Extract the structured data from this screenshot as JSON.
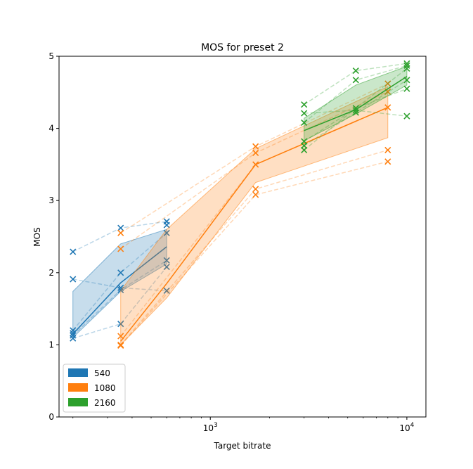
{
  "chart_data": {
    "type": "line",
    "title": "MOS for preset 2",
    "xlabel": "Target bitrate",
    "ylabel": "MOS",
    "xscale": "log",
    "xlim": [
      170,
      12500
    ],
    "ylim": [
      0,
      5
    ],
    "yticks": [
      0,
      1,
      2,
      3,
      4,
      5
    ],
    "xticks": [
      {
        "value": 1000,
        "base": "10",
        "exp": "3"
      },
      {
        "value": 10000,
        "base": "10",
        "exp": "4"
      }
    ],
    "legend": {
      "position": "lower-left",
      "entries": [
        "540",
        "1080",
        "2160"
      ]
    },
    "grid": false,
    "series": [
      {
        "name": "540",
        "color": "#1f77b4",
        "x": [
          200,
          350,
          600
        ],
        "mean": [
          1.15,
          1.86,
          2.36
        ],
        "band_low": [
          1.1,
          1.74,
          2.12
        ],
        "band_high": [
          1.74,
          2.4,
          2.6
        ],
        "points": [
          {
            "x": 200,
            "y": 2.29
          },
          {
            "x": 200,
            "y": 1.91
          },
          {
            "x": 200,
            "y": 1.2
          },
          {
            "x": 200,
            "y": 1.16
          },
          {
            "x": 200,
            "y": 1.13
          },
          {
            "x": 200,
            "y": 1.09
          },
          {
            "x": 350,
            "y": 2.62
          },
          {
            "x": 350,
            "y": 2.0
          },
          {
            "x": 350,
            "y": 1.79
          },
          {
            "x": 350,
            "y": 1.76
          },
          {
            "x": 350,
            "y": 1.29
          },
          {
            "x": 600,
            "y": 2.71
          },
          {
            "x": 600,
            "y": 2.66
          },
          {
            "x": 600,
            "y": 2.55
          },
          {
            "x": 600,
            "y": 2.17
          },
          {
            "x": 600,
            "y": 2.08
          },
          {
            "x": 600,
            "y": 1.75
          }
        ],
        "traces": [
          [
            {
              "x": 200,
              "y": 2.29
            },
            {
              "x": 350,
              "y": 2.62
            },
            {
              "x": 600,
              "y": 2.71
            }
          ],
          [
            {
              "x": 200,
              "y": 1.91
            },
            {
              "x": 350,
              "y": 1.79
            },
            {
              "x": 600,
              "y": 1.75
            }
          ],
          [
            {
              "x": 200,
              "y": 1.2
            },
            {
              "x": 350,
              "y": 2.0
            },
            {
              "x": 600,
              "y": 2.55
            }
          ],
          [
            {
              "x": 200,
              "y": 1.13
            },
            {
              "x": 350,
              "y": 1.76
            },
            {
              "x": 600,
              "y": 2.17
            }
          ],
          [
            {
              "x": 200,
              "y": 1.09
            },
            {
              "x": 350,
              "y": 1.29
            },
            {
              "x": 600,
              "y": 2.08
            }
          ]
        ]
      },
      {
        "name": "1080",
        "color": "#ff7f0e",
        "x": [
          350,
          600,
          1700,
          8000
        ],
        "mean": [
          1.05,
          1.85,
          3.5,
          4.29
        ],
        "band_low": [
          1.0,
          1.65,
          3.25,
          3.87
        ],
        "band_high": [
          1.75,
          2.6,
          3.72,
          4.58
        ],
        "points": [
          {
            "x": 350,
            "y": 2.55
          },
          {
            "x": 350,
            "y": 2.33
          },
          {
            "x": 350,
            "y": 1.12
          },
          {
            "x": 350,
            "y": 1.0
          },
          {
            "x": 350,
            "y": 0.99
          },
          {
            "x": 1700,
            "y": 3.75
          },
          {
            "x": 1700,
            "y": 3.66
          },
          {
            "x": 1700,
            "y": 3.5
          },
          {
            "x": 1700,
            "y": 3.16
          },
          {
            "x": 1700,
            "y": 3.08
          },
          {
            "x": 8000,
            "y": 4.62
          },
          {
            "x": 8000,
            "y": 4.51
          },
          {
            "x": 8000,
            "y": 4.29
          },
          {
            "x": 8000,
            "y": 3.7
          },
          {
            "x": 8000,
            "y": 3.54
          }
        ],
        "traces": [
          [
            {
              "x": 350,
              "y": 2.55
            },
            {
              "x": 1700,
              "y": 3.75
            },
            {
              "x": 8000,
              "y": 4.62
            }
          ],
          [
            {
              "x": 350,
              "y": 2.33
            },
            {
              "x": 1700,
              "y": 3.66
            },
            {
              "x": 8000,
              "y": 4.51
            }
          ],
          [
            {
              "x": 350,
              "y": 1.12
            },
            {
              "x": 1700,
              "y": 3.5
            },
            {
              "x": 8000,
              "y": 4.29
            }
          ],
          [
            {
              "x": 350,
              "y": 1.0
            },
            {
              "x": 1700,
              "y": 3.16
            },
            {
              "x": 8000,
              "y": 3.7
            }
          ],
          [
            {
              "x": 350,
              "y": 0.99
            },
            {
              "x": 1700,
              "y": 3.08
            },
            {
              "x": 8000,
              "y": 3.54
            }
          ]
        ]
      },
      {
        "name": "2160",
        "color": "#2ca02c",
        "x": [
          3000,
          5500,
          10000
        ],
        "mean": [
          3.97,
          4.26,
          4.72
        ],
        "band_low": [
          3.83,
          4.2,
          4.6
        ],
        "band_high": [
          4.14,
          4.6,
          4.86
        ],
        "points": [
          {
            "x": 3000,
            "y": 4.33
          },
          {
            "x": 3000,
            "y": 4.21
          },
          {
            "x": 3000,
            "y": 4.08
          },
          {
            "x": 3000,
            "y": 3.82
          },
          {
            "x": 3000,
            "y": 3.76
          },
          {
            "x": 3000,
            "y": 3.7
          },
          {
            "x": 5500,
            "y": 4.8
          },
          {
            "x": 5500,
            "y": 4.67
          },
          {
            "x": 5500,
            "y": 4.28
          },
          {
            "x": 5500,
            "y": 4.25
          },
          {
            "x": 5500,
            "y": 4.22
          },
          {
            "x": 10000,
            "y": 4.9
          },
          {
            "x": 10000,
            "y": 4.87
          },
          {
            "x": 10000,
            "y": 4.83
          },
          {
            "x": 10000,
            "y": 4.67
          },
          {
            "x": 10000,
            "y": 4.55
          },
          {
            "x": 10000,
            "y": 4.17
          }
        ],
        "traces": [
          [
            {
              "x": 3000,
              "y": 4.33
            },
            {
              "x": 5500,
              "y": 4.8
            },
            {
              "x": 10000,
              "y": 4.9
            }
          ],
          [
            {
              "x": 3000,
              "y": 4.21
            },
            {
              "x": 5500,
              "y": 4.25
            },
            {
              "x": 10000,
              "y": 4.17
            }
          ],
          [
            {
              "x": 3000,
              "y": 4.08
            },
            {
              "x": 5500,
              "y": 4.67
            },
            {
              "x": 10000,
              "y": 4.87
            }
          ],
          [
            {
              "x": 3000,
              "y": 3.82
            },
            {
              "x": 5500,
              "y": 4.28
            },
            {
              "x": 10000,
              "y": 4.83
            }
          ],
          [
            {
              "x": 3000,
              "y": 3.76
            },
            {
              "x": 5500,
              "y": 4.22
            },
            {
              "x": 10000,
              "y": 4.67
            }
          ],
          [
            {
              "x": 3000,
              "y": 3.7
            },
            {
              "x": 5500,
              "y": 4.28
            },
            {
              "x": 10000,
              "y": 4.55
            }
          ]
        ]
      }
    ]
  }
}
